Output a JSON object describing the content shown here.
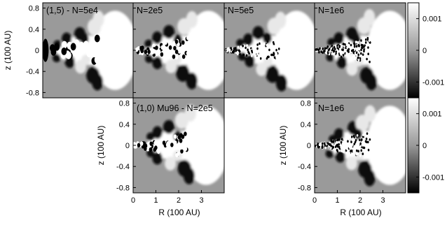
{
  "chart_data": {
    "type": "heatmap",
    "colormap": {
      "low": "#000000",
      "mid": "#999999",
      "high": "#ffffff"
    },
    "color_range": [
      -0.0015,
      0.0015
    ],
    "colorbar_ticks": [
      "0.001",
      "0",
      "-0.001"
    ],
    "colorbar_values": [
      0.001,
      0,
      -0.001
    ],
    "y_ticks": [
      "0.8",
      "0.4",
      "0",
      "-0.4",
      "-0.8"
    ],
    "y_tick_values": [
      0.8,
      0.4,
      0,
      -0.4,
      -0.8
    ],
    "x_ticks": [
      "0",
      "1",
      "2",
      "3"
    ],
    "x_tick_values": [
      0,
      1,
      2,
      3
    ],
    "ylabel": "z (100 AU)",
    "xlabel": "R (100 AU)",
    "xlim": [
      0,
      4
    ],
    "ylim": [
      -0.9,
      0.9
    ],
    "panels": [
      {
        "label": "(1,5) - N=5e4",
        "resolution": 0
      },
      {
        "label": "N=2e5",
        "resolution": 1
      },
      {
        "label": "N=5e5",
        "resolution": 2
      },
      {
        "label": "N=1e6",
        "resolution": 3
      },
      {
        "label": "(1,0) Mu96 - N=2e5",
        "resolution": 1
      },
      {
        "label": "N=1e6",
        "resolution": 3
      }
    ]
  }
}
